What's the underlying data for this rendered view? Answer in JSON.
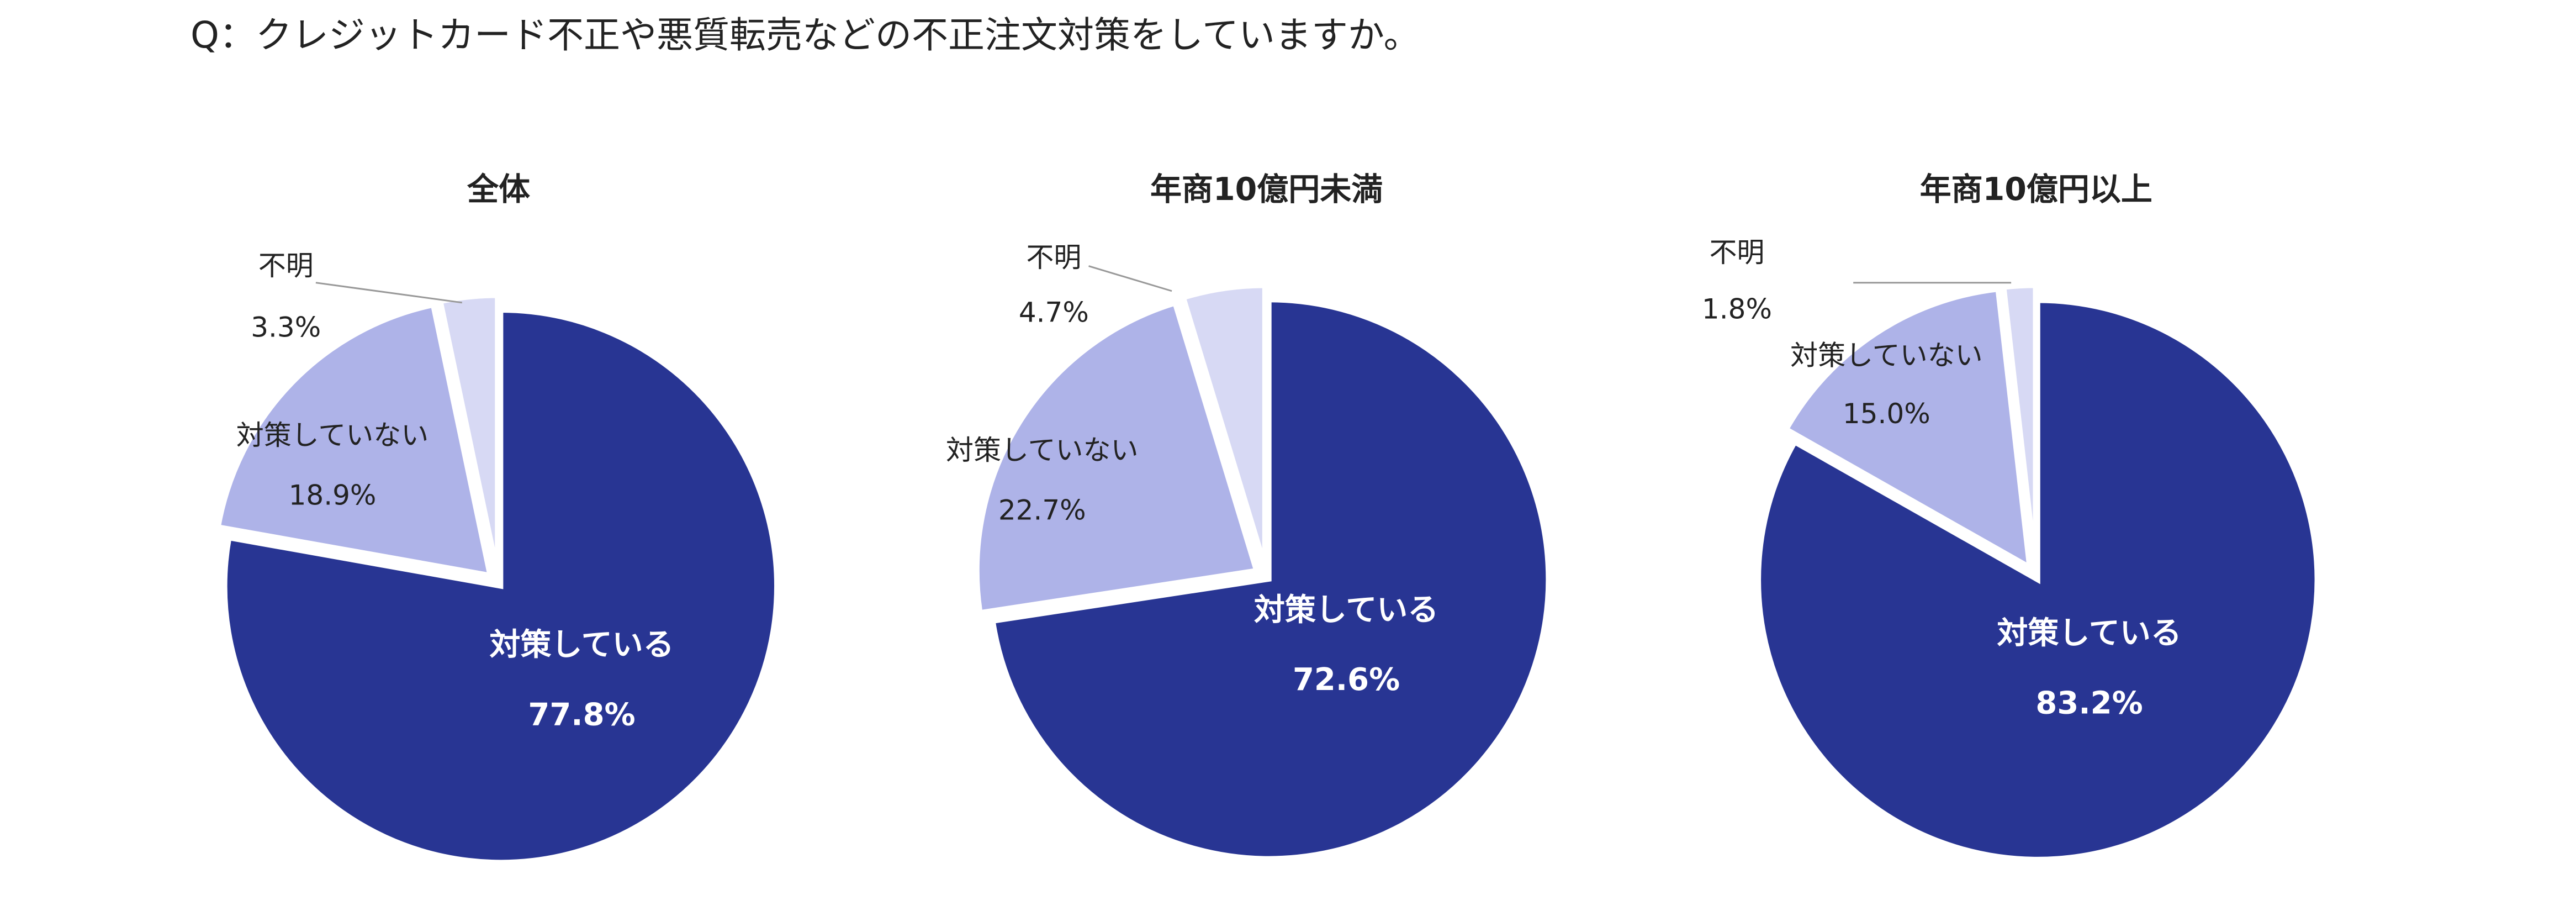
{
  "title": "Q：クレジットカード不正や悪質転売などの不正注文対策をしていますか。",
  "chart_data": [
    {
      "type": "pie",
      "title": "全体",
      "categories": [
        "対策している",
        "対策していない",
        "不明"
      ],
      "values": [
        77.8,
        18.9,
        3.3
      ],
      "value_labels": [
        "77.8%",
        "18.9%",
        "3.3%"
      ],
      "colors": [
        "#283593",
        "#aeb3e8",
        "#d7d9f4"
      ]
    },
    {
      "type": "pie",
      "title": "年商10億円未満",
      "categories": [
        "対策している",
        "対策していない",
        "不明"
      ],
      "values": [
        72.6,
        22.7,
        4.7
      ],
      "value_labels": [
        "72.6%",
        "22.7%",
        "4.7%"
      ],
      "colors": [
        "#283593",
        "#aeb3e8",
        "#d7d9f4"
      ]
    },
    {
      "type": "pie",
      "title": "年商10億円以上",
      "categories": [
        "対策している",
        "対策していない",
        "不明"
      ],
      "values": [
        83.2,
        15.0,
        1.8
      ],
      "value_labels": [
        "83.2%",
        "15.0%",
        "1.8%"
      ],
      "colors": [
        "#283593",
        "#aeb3e8",
        "#d7d9f4"
      ]
    }
  ]
}
